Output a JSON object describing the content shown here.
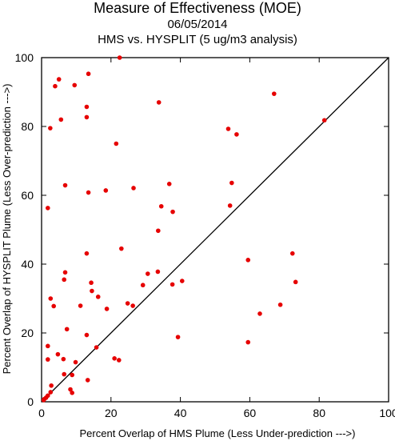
{
  "chart_data": {
    "type": "scatter",
    "title": "Measure of Effectiveness (MOE)",
    "subtitle": "06/05/2014",
    "subtitle2": "HMS vs. HYSPLIT  (5 ug/m3 analysis)",
    "xlabel": "Percent Overlap of HMS Plume (Less Under-prediction --->)",
    "ylabel": "Percent Overlap of HYSPLIT Plume (Less Over-prediction --->)",
    "xlim": [
      0,
      100
    ],
    "ylim": [
      0,
      100
    ],
    "xticks": [
      "0",
      "20",
      "40",
      "60",
      "80",
      "100"
    ],
    "yticks": [
      "0",
      "20",
      "40",
      "60",
      "80",
      "100"
    ],
    "grid": false,
    "reference_line": "y = x",
    "point_color": "#e60000",
    "x": [
      22.5,
      13.5,
      5,
      3.9,
      9.5,
      13,
      33.8,
      67,
      2.5,
      5.6,
      13,
      53.8,
      56.2,
      81.5,
      21.5,
      6.8,
      36.8,
      54.8,
      26.5,
      13.5,
      18.5,
      34.5,
      37.8,
      54.3,
      1.8,
      33.6,
      23,
      13,
      59.5,
      72.3,
      6.8,
      6.5,
      30.6,
      14.3,
      33.5,
      40.5,
      37.7,
      29.2,
      73.2,
      14.5,
      16.3,
      2.6,
      3.5,
      11.2,
      24.8,
      26.3,
      18.8,
      68.8,
      62.9,
      7.3,
      13,
      39.3,
      59.5,
      1.8,
      15.8,
      4.7,
      21,
      22.3,
      6.3,
      9.8,
      1.8,
      8.8,
      6.5,
      13.3,
      2.8,
      8.3,
      8.8,
      2.6,
      1.8,
      1.3,
      0.8,
      0.6
    ],
    "y": [
      100,
      95.3,
      93.7,
      91.7,
      92,
      85.7,
      87,
      89.5,
      79.5,
      82,
      82.7,
      79.3,
      77.7,
      81.8,
      75,
      62.9,
      63.3,
      63.6,
      62.1,
      60.8,
      61.4,
      56.8,
      55.2,
      57,
      56.3,
      49.7,
      44.5,
      43.1,
      41.2,
      43.1,
      37.6,
      35.5,
      37.2,
      34.6,
      37.8,
      35.1,
      34.1,
      33.9,
      34.8,
      32.2,
      30.5,
      30,
      27.8,
      27.9,
      28.6,
      27.9,
      27,
      28.2,
      25.6,
      21.1,
      19.4,
      18.8,
      17.3,
      16.2,
      15.8,
      13.8,
      12.6,
      12.1,
      12.4,
      11.5,
      12.3,
      7.8,
      8,
      6.3,
      4.7,
      3.6,
      2.6,
      2.8,
      1.8,
      1.2,
      0.8,
      0.5
    ]
  }
}
